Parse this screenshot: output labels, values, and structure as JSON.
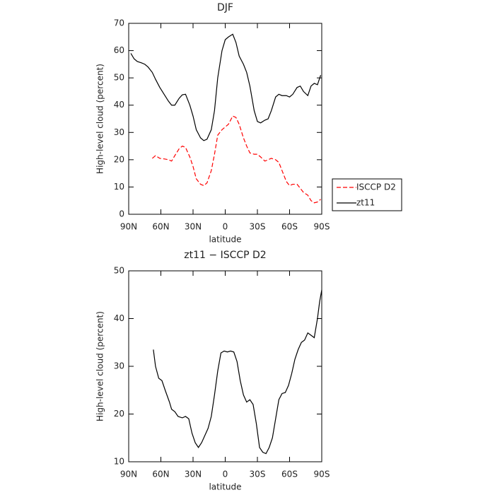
{
  "chart_data": [
    {
      "type": "line",
      "title": "DJF",
      "x_label": "latitude",
      "y_label": "High-level cloud (percent)",
      "x": [
        88,
        85,
        82,
        78,
        75,
        72,
        68,
        65,
        61,
        57,
        53,
        50,
        47,
        43,
        40,
        37,
        33,
        30,
        27,
        23,
        20,
        17,
        13,
        10,
        7,
        3,
        0,
        -3,
        -7,
        -10,
        -13,
        -17,
        -20,
        -23,
        -27,
        -30,
        -33,
        -37,
        -40,
        -43,
        -47,
        -50,
        -53,
        -57,
        -60,
        -63,
        -67,
        -70,
        -73,
        -77,
        -80,
        -83,
        -86,
        -89
      ],
      "series": [
        {
          "name": "ISCCP D2",
          "color": "#ff0000",
          "dash": true,
          "values": [
            null,
            null,
            null,
            null,
            null,
            null,
            20.5,
            21.5,
            20.5,
            20.3,
            20,
            19.5,
            21.5,
            24,
            25,
            24.5,
            21,
            17.5,
            13,
            11,
            10.5,
            11.5,
            16,
            22,
            29,
            31,
            32,
            33,
            36,
            35.5,
            33,
            28,
            25,
            22.5,
            22,
            22,
            21,
            19.5,
            20,
            20.5,
            20,
            19,
            16,
            12,
            10.5,
            11,
            11,
            9.5,
            8,
            7,
            5,
            4.2,
            4.5,
            5.5
          ]
        },
        {
          "name": "zt11",
          "color": "#000000",
          "dash": false,
          "values": [
            59,
            57,
            56,
            55.5,
            55,
            54,
            52,
            49.5,
            46.5,
            44,
            41.5,
            40,
            40,
            42.5,
            43.8,
            44,
            40,
            36,
            31,
            28,
            27,
            27.5,
            31,
            38,
            50,
            60,
            64,
            65,
            66,
            63,
            58,
            55,
            52,
            47,
            38,
            34,
            33.5,
            34.5,
            35,
            38,
            43,
            44,
            43.5,
            43.5,
            43,
            44,
            46.5,
            47,
            45,
            43.5,
            47,
            48,
            47.5,
            51
          ]
        }
      ],
      "xlim": [
        90,
        -90
      ],
      "xticks": [
        {
          "value": 90,
          "label": "90N"
        },
        {
          "value": 60,
          "label": "60N"
        },
        {
          "value": 30,
          "label": "30N"
        },
        0,
        {
          "value": -30,
          "label": "30S"
        },
        {
          "value": -60,
          "label": "60S"
        },
        {
          "value": -90,
          "label": "90S"
        }
      ],
      "ylim": [
        0,
        70
      ],
      "yticks": [
        0,
        10,
        20,
        30,
        40,
        50,
        60,
        70
      ],
      "legend": "right"
    },
    {
      "type": "line",
      "title": "zt11 − ISCCP D2",
      "x_label": "latitude",
      "y_label": "High-level cloud (percent)",
      "x": [
        67,
        65,
        62,
        59,
        56,
        52,
        50,
        47,
        44,
        40,
        37,
        34,
        31,
        28,
        25,
        22,
        19,
        16,
        13,
        10,
        7,
        4,
        1,
        -2,
        -5,
        -8,
        -11,
        -14,
        -17,
        -20,
        -23,
        -26,
        -29,
        -32,
        -35,
        -38,
        -41,
        -44,
        -47,
        -50,
        -53,
        -56,
        -59,
        -62,
        -65,
        -68,
        -71,
        -74,
        -77,
        -80,
        -83,
        -86,
        -88,
        -90
      ],
      "series": [
        {
          "name": "zt11 − ISCCP D2",
          "color": "#000000",
          "dash": false,
          "values": [
            33.5,
            30,
            27.5,
            27,
            25,
            22.5,
            21,
            20.5,
            19.5,
            19.2,
            19.5,
            19,
            16,
            14,
            13,
            14,
            15.5,
            17,
            19.5,
            24,
            29,
            32.8,
            33.2,
            33,
            33.2,
            33,
            31,
            27,
            24,
            22.5,
            23,
            22,
            18,
            13,
            12,
            11.7,
            13,
            15,
            19,
            23,
            24.3,
            24.5,
            26,
            28.5,
            31.5,
            33.5,
            35,
            35.5,
            37,
            36.5,
            36,
            40,
            43.5,
            46
          ]
        }
      ],
      "xlim": [
        90,
        -90
      ],
      "xticks": [
        {
          "value": 90,
          "label": "90N"
        },
        {
          "value": 60,
          "label": "60N"
        },
        {
          "value": 30,
          "label": "30N"
        },
        0,
        {
          "value": -30,
          "label": "30S"
        },
        {
          "value": -60,
          "label": "60S"
        },
        {
          "value": -90,
          "label": "90S"
        }
      ],
      "ylim": [
        10,
        50
      ],
      "yticks": [
        10,
        20,
        30,
        40,
        50
      ]
    }
  ]
}
